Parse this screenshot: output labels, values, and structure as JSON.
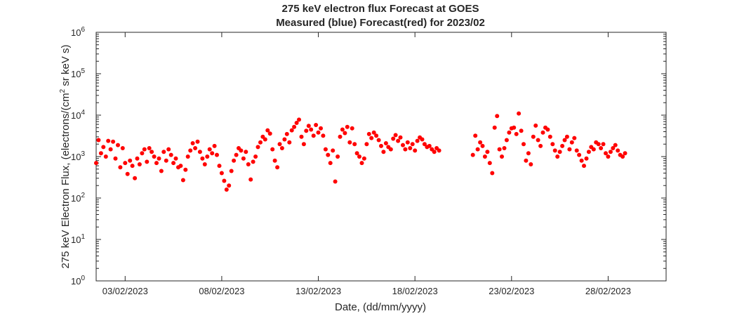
{
  "chart_data": {
    "type": "scatter",
    "title": "275 keV electron flux Forecast at GOES",
    "subtitle": "Measured (blue) Forecast(red) for 2023/02",
    "xlabel": "Date, (dd/mm/yyyy)",
    "ylabel": {
      "text_before": "275 keV Electron Flux, (electrons/(cm",
      "superscript": "2",
      "text_after": " sr keV s)"
    },
    "y_scale": "log",
    "ylim": [
      1,
      1000000
    ],
    "y_ticks": [
      {
        "value": 1,
        "base": "10",
        "exp": "0"
      },
      {
        "value": 10,
        "base": "10",
        "exp": "1"
      },
      {
        "value": 100,
        "base": "10",
        "exp": "2"
      },
      {
        "value": 1000,
        "base": "10",
        "exp": "3"
      },
      {
        "value": 10000,
        "base": "10",
        "exp": "4"
      },
      {
        "value": 100000,
        "base": "10",
        "exp": "5"
      },
      {
        "value": 1000000,
        "base": "10",
        "exp": "6"
      }
    ],
    "xlim": [
      "2023-02-01T12:00",
      "2023-03-03T00:00"
    ],
    "x_ticks": [
      {
        "date": "2023-02-03",
        "label": "03/02/2023"
      },
      {
        "date": "2023-02-08",
        "label": "08/02/2023"
      },
      {
        "date": "2023-02-13",
        "label": "13/02/2023"
      },
      {
        "date": "2023-02-18",
        "label": "18/02/2023"
      },
      {
        "date": "2023-02-23",
        "label": "23/02/2023"
      },
      {
        "date": "2023-02-28",
        "label": "28/02/2023"
      }
    ],
    "grid": false,
    "series": [
      {
        "color": "#ff0000",
        "points": [
          [
            "2023-02-01T12:00",
            700
          ],
          [
            "2023-02-01T15:00",
            2500
          ],
          [
            "2023-02-01T18:00",
            1200
          ],
          [
            "2023-02-01T21:00",
            1700
          ],
          [
            "2023-02-02T00:00",
            1000
          ],
          [
            "2023-02-02T03:00",
            2400
          ],
          [
            "2023-02-02T06:00",
            1500
          ],
          [
            "2023-02-02T09:00",
            2300
          ],
          [
            "2023-02-02T12:00",
            900
          ],
          [
            "2023-02-02T15:00",
            1900
          ],
          [
            "2023-02-02T18:00",
            550
          ],
          [
            "2023-02-02T21:00",
            1600
          ],
          [
            "2023-02-03T00:00",
            700
          ],
          [
            "2023-02-03T03:00",
            380
          ],
          [
            "2023-02-03T06:00",
            800
          ],
          [
            "2023-02-03T09:00",
            600
          ],
          [
            "2023-02-03T12:00",
            300
          ],
          [
            "2023-02-03T15:00",
            900
          ],
          [
            "2023-02-03T18:00",
            650
          ],
          [
            "2023-02-03T21:00",
            1200
          ],
          [
            "2023-02-04T00:00",
            1500
          ],
          [
            "2023-02-04T03:00",
            750
          ],
          [
            "2023-02-04T06:00",
            1600
          ],
          [
            "2023-02-04T09:00",
            1300
          ],
          [
            "2023-02-04T12:00",
            1000
          ],
          [
            "2023-02-04T15:00",
            700
          ],
          [
            "2023-02-04T18:00",
            900
          ],
          [
            "2023-02-04T21:00",
            450
          ],
          [
            "2023-02-05T00:00",
            1300
          ],
          [
            "2023-02-05T03:00",
            800
          ],
          [
            "2023-02-05T06:00",
            1500
          ],
          [
            "2023-02-05T09:00",
            1100
          ],
          [
            "2023-02-05T12:00",
            700
          ],
          [
            "2023-02-05T15:00",
            900
          ],
          [
            "2023-02-05T18:00",
            550
          ],
          [
            "2023-02-05T21:00",
            600
          ],
          [
            "2023-02-06T00:00",
            270
          ],
          [
            "2023-02-06T03:00",
            480
          ],
          [
            "2023-02-06T06:00",
            1000
          ],
          [
            "2023-02-06T09:00",
            1400
          ],
          [
            "2023-02-06T12:00",
            2100
          ],
          [
            "2023-02-06T15:00",
            1600
          ],
          [
            "2023-02-06T18:00",
            2300
          ],
          [
            "2023-02-06T21:00",
            1300
          ],
          [
            "2023-02-07T00:00",
            900
          ],
          [
            "2023-02-07T03:00",
            650
          ],
          [
            "2023-02-07T06:00",
            1000
          ],
          [
            "2023-02-07T09:00",
            1500
          ],
          [
            "2023-02-07T12:00",
            1200
          ],
          [
            "2023-02-07T15:00",
            1800
          ],
          [
            "2023-02-07T18:00",
            1100
          ],
          [
            "2023-02-07T21:00",
            600
          ],
          [
            "2023-02-08T00:00",
            400
          ],
          [
            "2023-02-08T03:00",
            260
          ],
          [
            "2023-02-08T06:00",
            160
          ],
          [
            "2023-02-08T09:00",
            200
          ],
          [
            "2023-02-08T12:00",
            450
          ],
          [
            "2023-02-08T15:00",
            800
          ],
          [
            "2023-02-08T18:00",
            1100
          ],
          [
            "2023-02-08T21:00",
            1600
          ],
          [
            "2023-02-09T00:00",
            1400
          ],
          [
            "2023-02-09T03:00",
            900
          ],
          [
            "2023-02-09T06:00",
            1300
          ],
          [
            "2023-02-09T09:00",
            650
          ],
          [
            "2023-02-09T12:00",
            280
          ],
          [
            "2023-02-09T15:00",
            750
          ],
          [
            "2023-02-09T18:00",
            1000
          ],
          [
            "2023-02-09T21:00",
            1700
          ],
          [
            "2023-02-10T00:00",
            2200
          ],
          [
            "2023-02-10T03:00",
            3000
          ],
          [
            "2023-02-10T06:00",
            2600
          ],
          [
            "2023-02-10T09:00",
            4300
          ],
          [
            "2023-02-10T12:00",
            3600
          ],
          [
            "2023-02-10T15:00",
            1500
          ],
          [
            "2023-02-10T18:00",
            800
          ],
          [
            "2023-02-10T21:00",
            550
          ],
          [
            "2023-02-11T00:00",
            2000
          ],
          [
            "2023-02-11T03:00",
            1600
          ],
          [
            "2023-02-11T06:00",
            2600
          ],
          [
            "2023-02-11T09:00",
            3500
          ],
          [
            "2023-02-11T12:00",
            2200
          ],
          [
            "2023-02-11T15:00",
            4300
          ],
          [
            "2023-02-11T18:00",
            5200
          ],
          [
            "2023-02-11T21:00",
            6500
          ],
          [
            "2023-02-12T00:00",
            7800
          ],
          [
            "2023-02-12T03:00",
            3000
          ],
          [
            "2023-02-12T06:00",
            2000
          ],
          [
            "2023-02-12T09:00",
            4200
          ],
          [
            "2023-02-12T12:00",
            5500
          ],
          [
            "2023-02-12T15:00",
            4500
          ],
          [
            "2023-02-12T18:00",
            3200
          ],
          [
            "2023-02-12T21:00",
            5800
          ],
          [
            "2023-02-13T00:00",
            3800
          ],
          [
            "2023-02-13T03:00",
            4800
          ],
          [
            "2023-02-13T06:00",
            3200
          ],
          [
            "2023-02-13T09:00",
            1500
          ],
          [
            "2023-02-13T12:00",
            1100
          ],
          [
            "2023-02-13T15:00",
            700
          ],
          [
            "2023-02-13T18:00",
            1400
          ],
          [
            "2023-02-13T21:00",
            250
          ],
          [
            "2023-02-14T00:00",
            1000
          ],
          [
            "2023-02-14T03:00",
            3000
          ],
          [
            "2023-02-14T06:00",
            4500
          ],
          [
            "2023-02-14T09:00",
            3700
          ],
          [
            "2023-02-14T12:00",
            5200
          ],
          [
            "2023-02-14T15:00",
            2200
          ],
          [
            "2023-02-14T18:00",
            4800
          ],
          [
            "2023-02-14T21:00",
            2000
          ],
          [
            "2023-02-15T00:00",
            1200
          ],
          [
            "2023-02-15T03:00",
            1000
          ],
          [
            "2023-02-15T06:00",
            700
          ],
          [
            "2023-02-15T09:00",
            900
          ],
          [
            "2023-02-15T12:00",
            2000
          ],
          [
            "2023-02-15T15:00",
            3500
          ],
          [
            "2023-02-15T18:00",
            2800
          ],
          [
            "2023-02-15T21:00",
            3800
          ],
          [
            "2023-02-16T00:00",
            3200
          ],
          [
            "2023-02-16T03:00",
            2500
          ],
          [
            "2023-02-16T06:00",
            1800
          ],
          [
            "2023-02-16T09:00",
            1300
          ],
          [
            "2023-02-16T12:00",
            2100
          ],
          [
            "2023-02-16T15:00",
            1700
          ],
          [
            "2023-02-16T18:00",
            1500
          ],
          [
            "2023-02-16T21:00",
            2700
          ],
          [
            "2023-02-17T00:00",
            3300
          ],
          [
            "2023-02-17T03:00",
            2400
          ],
          [
            "2023-02-17T06:00",
            2900
          ],
          [
            "2023-02-17T09:00",
            1900
          ],
          [
            "2023-02-17T12:00",
            1500
          ],
          [
            "2023-02-17T15:00",
            2200
          ],
          [
            "2023-02-17T18:00",
            1600
          ],
          [
            "2023-02-17T21:00",
            2000
          ],
          [
            "2023-02-18T00:00",
            1400
          ],
          [
            "2023-02-18T03:00",
            2400
          ],
          [
            "2023-02-18T06:00",
            2900
          ],
          [
            "2023-02-18T09:00",
            2600
          ],
          [
            "2023-02-18T12:00",
            2000
          ],
          [
            "2023-02-18T15:00",
            1700
          ],
          [
            "2023-02-18T18:00",
            1800
          ],
          [
            "2023-02-18T21:00",
            1500
          ],
          [
            "2023-02-19T00:00",
            1300
          ],
          [
            "2023-02-19T03:00",
            1600
          ],
          [
            "2023-02-19T06:00",
            1400
          ],
          [
            "2023-02-21T00:00",
            1100
          ],
          [
            "2023-02-21T03:00",
            3200
          ],
          [
            "2023-02-21T06:00",
            1500
          ],
          [
            "2023-02-21T09:00",
            2200
          ],
          [
            "2023-02-21T12:00",
            1800
          ],
          [
            "2023-02-21T15:00",
            1000
          ],
          [
            "2023-02-21T18:00",
            1300
          ],
          [
            "2023-02-21T21:00",
            700
          ],
          [
            "2023-02-22T00:00",
            400
          ],
          [
            "2023-02-22T03:00",
            5000
          ],
          [
            "2023-02-22T06:00",
            9500
          ],
          [
            "2023-02-22T09:00",
            1500
          ],
          [
            "2023-02-22T12:00",
            1000
          ],
          [
            "2023-02-22T15:00",
            1600
          ],
          [
            "2023-02-22T18:00",
            2500
          ],
          [
            "2023-02-22T21:00",
            3800
          ],
          [
            "2023-02-23T00:00",
            4800
          ],
          [
            "2023-02-23T03:00",
            5000
          ],
          [
            "2023-02-23T06:00",
            3500
          ],
          [
            "2023-02-23T09:00",
            11000
          ],
          [
            "2023-02-23T12:00",
            4200
          ],
          [
            "2023-02-23T15:00",
            2000
          ],
          [
            "2023-02-23T18:00",
            800
          ],
          [
            "2023-02-23T21:00",
            1200
          ],
          [
            "2023-02-24T00:00",
            650
          ],
          [
            "2023-02-24T03:00",
            3000
          ],
          [
            "2023-02-24T06:00",
            5600
          ],
          [
            "2023-02-24T09:00",
            2500
          ],
          [
            "2023-02-24T12:00",
            1800
          ],
          [
            "2023-02-24T15:00",
            3800
          ],
          [
            "2023-02-24T18:00",
            5000
          ],
          [
            "2023-02-24T21:00",
            4500
          ],
          [
            "2023-02-25T00:00",
            3000
          ],
          [
            "2023-02-25T03:00",
            2000
          ],
          [
            "2023-02-25T06:00",
            1400
          ],
          [
            "2023-02-25T09:00",
            1000
          ],
          [
            "2023-02-25T12:00",
            1300
          ],
          [
            "2023-02-25T15:00",
            1800
          ],
          [
            "2023-02-25T18:00",
            2500
          ],
          [
            "2023-02-25T21:00",
            3000
          ],
          [
            "2023-02-26T00:00",
            1500
          ],
          [
            "2023-02-26T03:00",
            2200
          ],
          [
            "2023-02-26T06:00",
            2800
          ],
          [
            "2023-02-26T09:00",
            1400
          ],
          [
            "2023-02-26T12:00",
            1100
          ],
          [
            "2023-02-26T15:00",
            800
          ],
          [
            "2023-02-26T18:00",
            600
          ],
          [
            "2023-02-26T21:00",
            900
          ],
          [
            "2023-02-27T00:00",
            1300
          ],
          [
            "2023-02-27T03:00",
            1700
          ],
          [
            "2023-02-27T06:00",
            1500
          ],
          [
            "2023-02-27T09:00",
            2200
          ],
          [
            "2023-02-27T12:00",
            2000
          ],
          [
            "2023-02-27T15:00",
            1600
          ],
          [
            "2023-02-27T18:00",
            2000
          ],
          [
            "2023-02-27T21:00",
            1200
          ],
          [
            "2023-02-28T00:00",
            1000
          ],
          [
            "2023-02-28T03:00",
            1300
          ],
          [
            "2023-02-28T06:00",
            1600
          ],
          [
            "2023-02-28T09:00",
            1900
          ],
          [
            "2023-02-28T12:00",
            1400
          ],
          [
            "2023-02-28T15:00",
            1100
          ],
          [
            "2023-02-28T18:00",
            1000
          ],
          [
            "2023-02-28T21:00",
            1200
          ]
        ]
      }
    ]
  }
}
